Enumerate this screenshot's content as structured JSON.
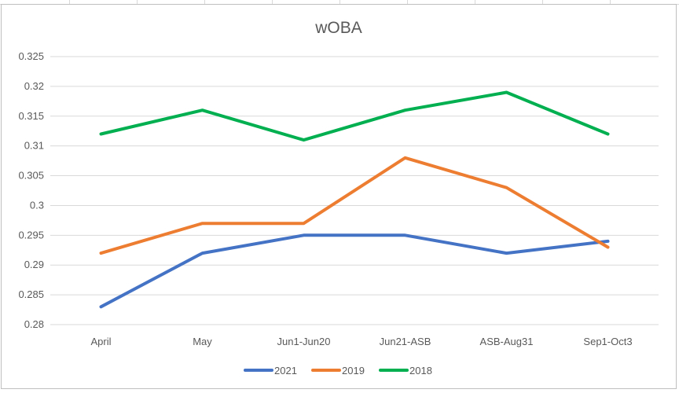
{
  "chart_data": {
    "type": "line",
    "title": "wOBA",
    "categories": [
      "April",
      "May",
      "Jun1-Jun20",
      "Jun21-ASB",
      "ASB-Aug31",
      "Sep1-Oct3"
    ],
    "series": [
      {
        "name": "2021",
        "color": "#4472c4",
        "values": [
          0.283,
          0.292,
          0.295,
          0.295,
          0.292,
          0.294
        ]
      },
      {
        "name": "2019",
        "color": "#ed7d31",
        "values": [
          0.292,
          0.297,
          0.297,
          0.308,
          0.303,
          0.293
        ]
      },
      {
        "name": "2018",
        "color": "#00b050",
        "values": [
          0.312,
          0.316,
          0.311,
          0.316,
          0.319,
          0.312
        ]
      }
    ],
    "ylim": [
      0.28,
      0.325
    ],
    "yticks": [
      "0.28",
      "0.285",
      "0.29",
      "0.295",
      "0.3",
      "0.305",
      "0.31",
      "0.315",
      "0.32",
      "0.325"
    ],
    "xlabel": "",
    "ylabel": "",
    "grid": true,
    "legend_position": "bottom"
  }
}
